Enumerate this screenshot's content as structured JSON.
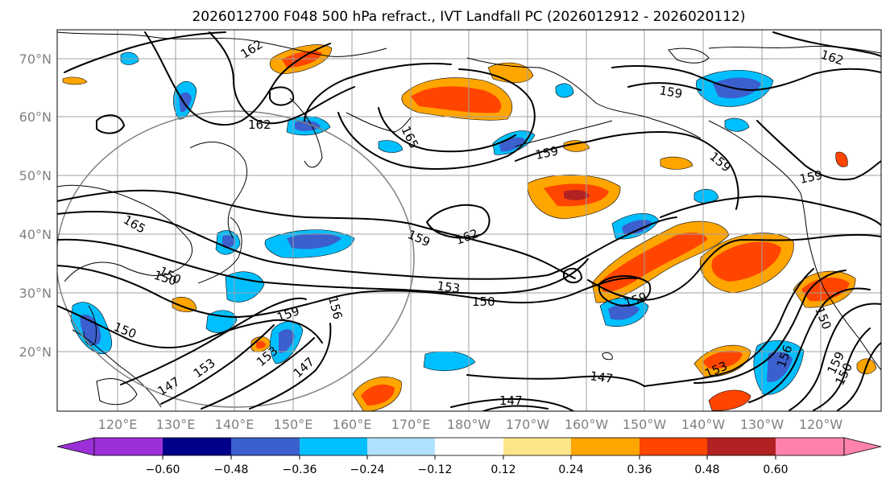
{
  "title": "2026012700 F048 500 hPa refract., IVT Landfall PC (2026012912 - 2026020112)",
  "map": {
    "lat_labels": [
      "70°N",
      "60°N",
      "50°N",
      "40°N",
      "30°N",
      "20°N"
    ],
    "lon_labels": [
      "120°E",
      "130°E",
      "140°E",
      "150°E",
      "160°E",
      "170°E",
      "180°W",
      "170°W",
      "160°W",
      "150°W",
      "140°W",
      "130°W",
      "120°W"
    ],
    "contour_labels": [
      "162",
      "162",
      "165",
      "159",
      "159",
      "159",
      "159",
      "165",
      "159",
      "162",
      "150",
      "153",
      "150",
      "159",
      "150",
      "153",
      "153",
      "147",
      "147",
      "150",
      "159",
      "156",
      "147",
      "150",
      "153",
      "162",
      "147",
      "150",
      "156",
      "159"
    ]
  },
  "colorbar": {
    "colors": [
      "#9b30d9",
      "#00008b",
      "#3b5fcd",
      "#00bfff",
      "#b0e2ff",
      "#ffffff",
      "#ffe58a",
      "#ffa500",
      "#ff4500",
      "#b22222",
      "#ff82ab"
    ],
    "tick_labels": [
      "−0.60",
      "−0.48",
      "−0.36",
      "−0.24",
      "−0.12",
      "0.12",
      "0.24",
      "0.36",
      "0.48",
      "0.60"
    ]
  },
  "legend_colors": {
    "neg_strong": "#3b5fcd",
    "neg_mid": "#00bfff",
    "neg_weak": "#b0e2ff",
    "pos_weak": "#ffe58a",
    "pos_mid": "#ffa500",
    "pos_strong": "#ff4500",
    "pos_max": "#b22222"
  }
}
